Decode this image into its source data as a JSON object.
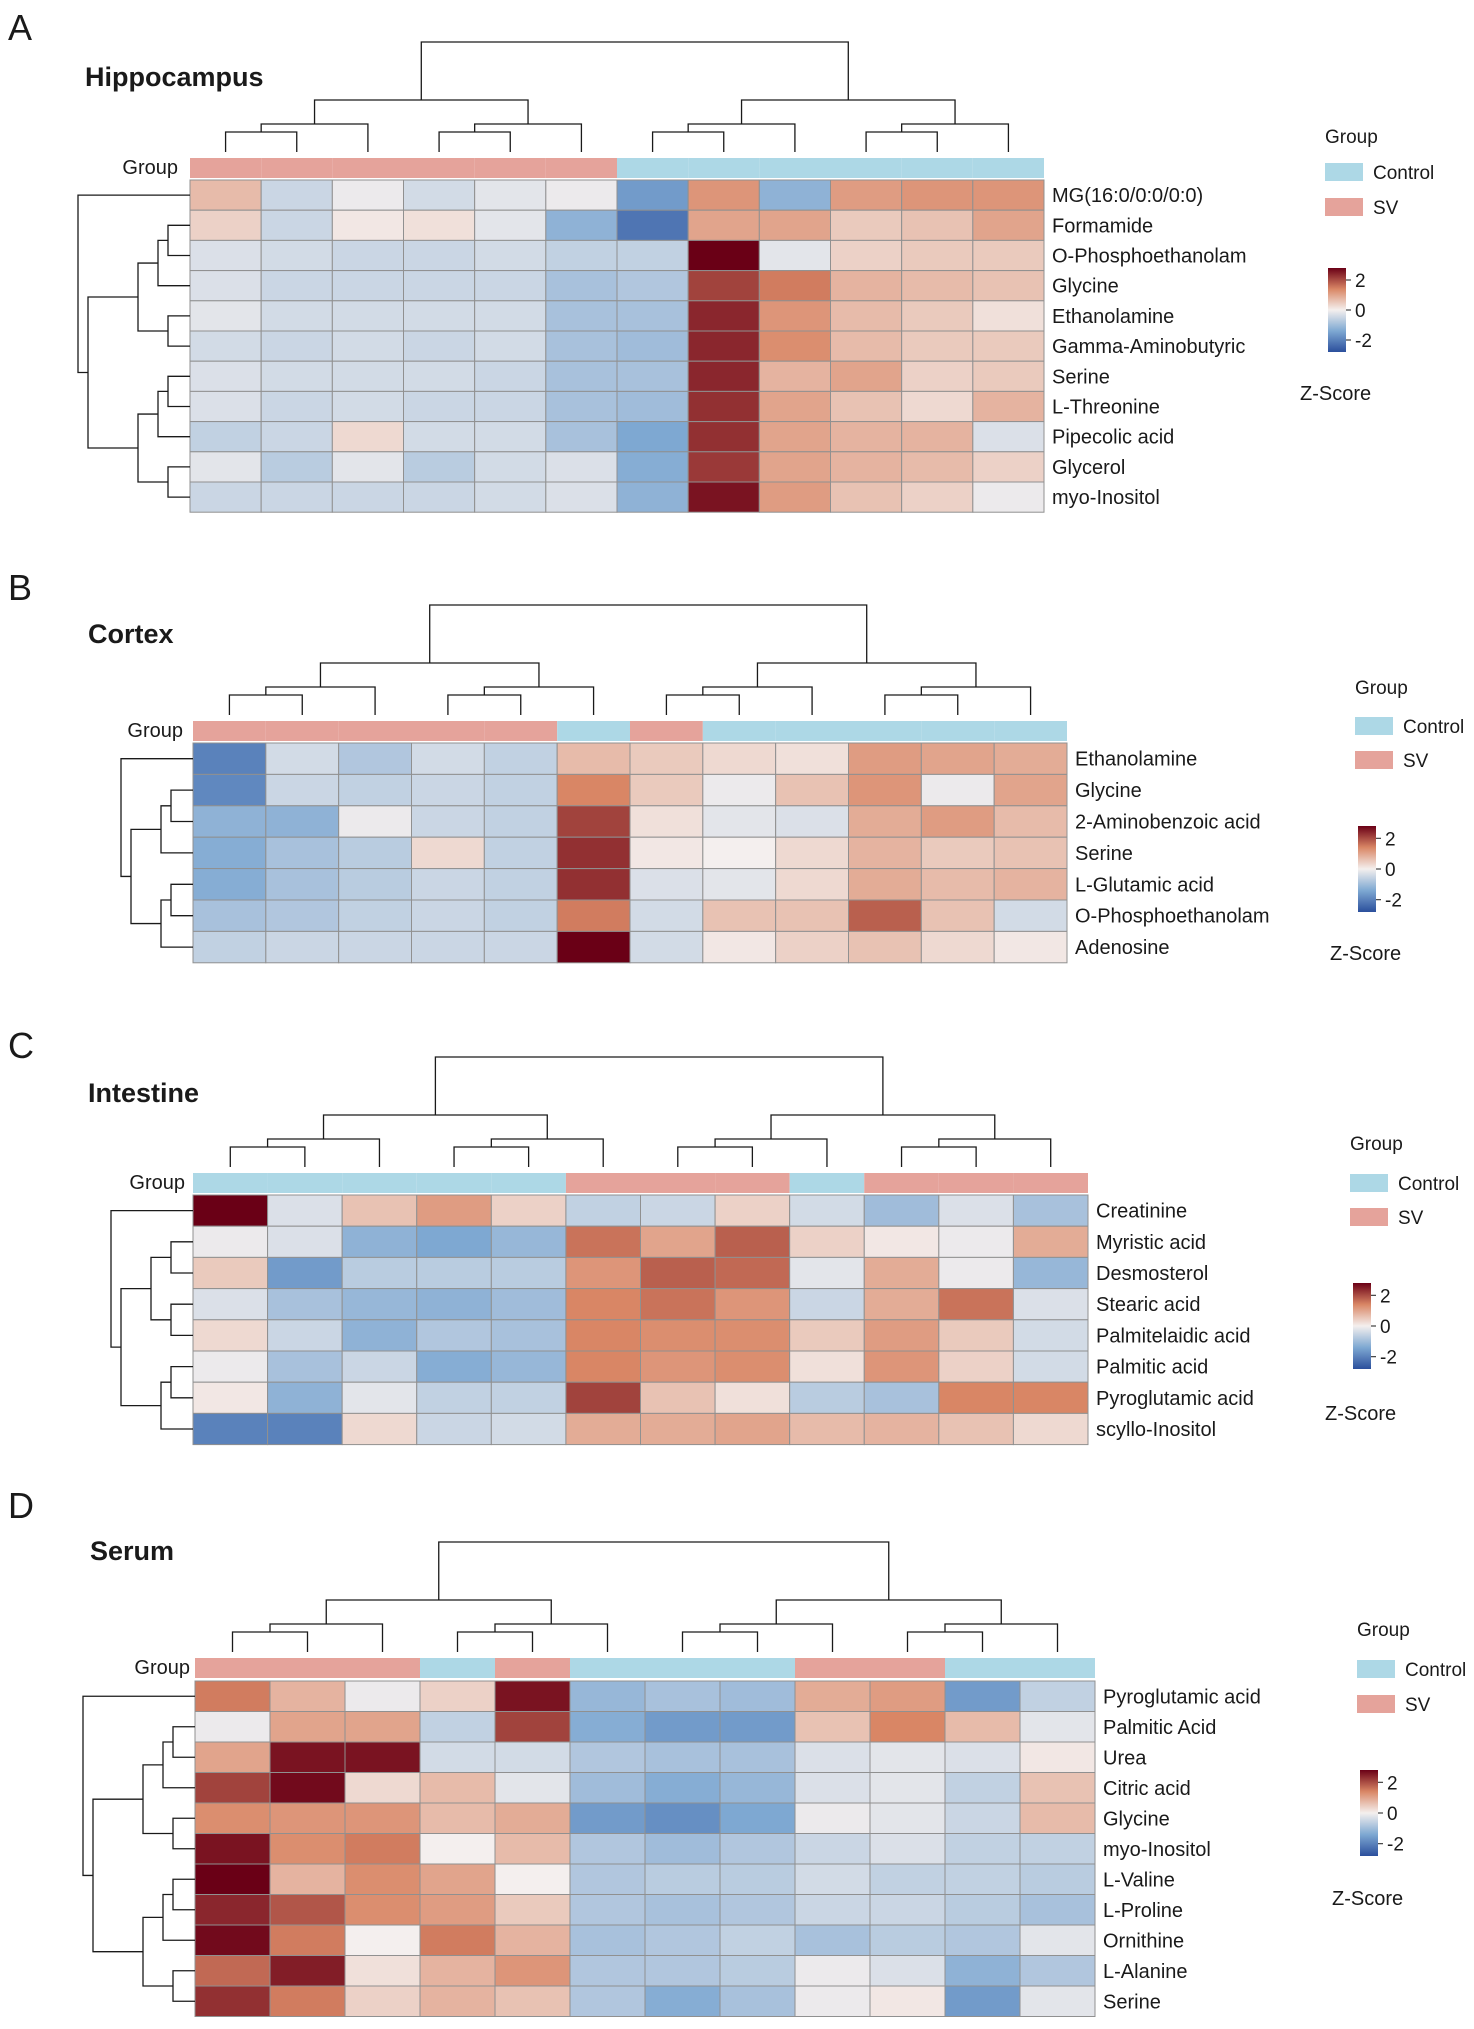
{
  "chart_data": [
    {
      "type": "heatmap",
      "panel": "A",
      "title": "Hippocampus",
      "group_label": "Group",
      "columns": [
        "SV",
        "SV",
        "SV",
        "SV",
        "SV",
        "SV",
        "Control",
        "Control",
        "Control",
        "Control",
        "Control",
        "Control"
      ],
      "rows": [
        "MG(16:0/0:0/0:0)",
        "Formamide",
        "O-Phosphoethanolam",
        "Glycine",
        "Ethanolamine",
        "Gamma-Aminobutyric",
        "Serine",
        "L-Threonine",
        "Pipecolic acid",
        "Glycerol",
        "myo-Inositol"
      ],
      "values": [
        [
          0.7,
          -0.5,
          -0.1,
          -0.4,
          -0.2,
          -0.1,
          -1.6,
          1.2,
          -1.2,
          1.1,
          1.2,
          1.2
        ],
        [
          0.4,
          -0.5,
          0.1,
          0.2,
          -0.2,
          -1.2,
          -2.2,
          1.0,
          1.0,
          0.5,
          0.6,
          1.0
        ],
        [
          -0.3,
          -0.4,
          -0.5,
          -0.5,
          -0.4,
          -0.6,
          -0.6,
          2.8,
          -0.2,
          0.4,
          0.5,
          0.5
        ],
        [
          -0.3,
          -0.5,
          -0.5,
          -0.5,
          -0.5,
          -0.9,
          -0.8,
          2.1,
          1.5,
          0.8,
          0.7,
          0.6
        ],
        [
          -0.2,
          -0.4,
          -0.4,
          -0.4,
          -0.4,
          -0.9,
          -0.9,
          2.4,
          1.2,
          0.7,
          0.5,
          0.2
        ],
        [
          -0.4,
          -0.5,
          -0.4,
          -0.5,
          -0.4,
          -0.9,
          -1.0,
          2.4,
          1.3,
          0.7,
          0.5,
          0.5
        ],
        [
          -0.3,
          -0.4,
          -0.4,
          -0.4,
          -0.5,
          -0.9,
          -0.9,
          2.4,
          0.8,
          1.0,
          0.4,
          0.5
        ],
        [
          -0.3,
          -0.5,
          -0.4,
          -0.5,
          -0.5,
          -0.9,
          -1.0,
          2.3,
          1.0,
          0.6,
          0.3,
          0.8
        ],
        [
          -0.6,
          -0.5,
          0.3,
          -0.4,
          -0.4,
          -0.9,
          -1.4,
          2.3,
          1.0,
          0.8,
          0.8,
          -0.3
        ],
        [
          -0.2,
          -0.7,
          -0.2,
          -0.7,
          -0.4,
          -0.3,
          -1.3,
          2.2,
          1.0,
          0.8,
          0.7,
          0.4
        ],
        [
          -0.5,
          -0.5,
          -0.5,
          -0.5,
          -0.4,
          -0.3,
          -1.2,
          2.6,
          1.1,
          0.6,
          0.4,
          -0.1
        ]
      ],
      "legend": {
        "title": "Group",
        "entries": [
          "Control",
          "SV"
        ]
      },
      "colorbar": {
        "title": "Z-Score",
        "ticks": [
          "2",
          "0",
          "-2"
        ],
        "range": [
          -2.8,
          2.8
        ]
      }
    },
    {
      "type": "heatmap",
      "panel": "B",
      "title": "Cortex",
      "group_label": "Group",
      "columns": [
        "SV",
        "SV",
        "SV",
        "SV",
        "SV",
        "Control",
        "SV",
        "Control",
        "Control",
        "Control",
        "Control",
        "Control"
      ],
      "rows": [
        "Ethanolamine",
        "Glycine",
        "2-Aminobenzoic acid",
        "Serine",
        "L-Glutamic acid",
        "O-Phosphoethanolam",
        "Adenosine"
      ],
      "values": [
        [
          -2.0,
          -0.4,
          -0.8,
          -0.4,
          -0.6,
          0.7,
          0.5,
          0.3,
          0.2,
          1.1,
          1.0,
          0.9
        ],
        [
          -1.9,
          -0.5,
          -0.6,
          -0.5,
          -0.6,
          1.4,
          0.5,
          -0.1,
          0.6,
          1.2,
          -0.1,
          1.0
        ],
        [
          -1.2,
          -1.2,
          -0.1,
          -0.5,
          -0.6,
          2.1,
          0.2,
          -0.2,
          -0.3,
          0.9,
          1.1,
          0.7
        ],
        [
          -1.3,
          -0.9,
          -0.7,
          0.3,
          -0.6,
          2.3,
          0.1,
          0.0,
          0.3,
          0.8,
          0.5,
          0.6
        ],
        [
          -1.3,
          -0.9,
          -0.7,
          -0.5,
          -0.6,
          2.3,
          -0.3,
          -0.2,
          0.3,
          0.9,
          0.7,
          0.8
        ],
        [
          -0.9,
          -0.8,
          -0.6,
          -0.5,
          -0.6,
          1.5,
          -0.4,
          0.6,
          0.6,
          1.8,
          0.6,
          -0.4
        ],
        [
          -0.6,
          -0.5,
          -0.5,
          -0.5,
          -0.5,
          2.8,
          -0.4,
          0.1,
          0.4,
          0.6,
          0.3,
          0.1
        ]
      ],
      "legend": {
        "title": "Group",
        "entries": [
          "Control",
          "SV"
        ]
      },
      "colorbar": {
        "title": "Z-Score",
        "ticks": [
          "2",
          "0",
          "-2"
        ],
        "range": [
          -2.8,
          2.8
        ]
      }
    },
    {
      "type": "heatmap",
      "panel": "C",
      "title": "Intestine",
      "group_label": "Group",
      "columns": [
        "Control",
        "Control",
        "Control",
        "Control",
        "Control",
        "SV",
        "SV",
        "SV",
        "Control",
        "SV",
        "SV",
        "SV"
      ],
      "rows": [
        "Creatinine",
        "Myristic acid",
        "Desmosterol",
        "Stearic acid",
        "Palmitelaidic acid",
        "Palmitic acid",
        "Pyroglutamic acid",
        "scyllo-Inositol"
      ],
      "values": [
        [
          2.8,
          -0.3,
          0.6,
          1.1,
          0.4,
          -0.6,
          -0.5,
          0.4,
          -0.4,
          -1.0,
          -0.3,
          -0.9
        ],
        [
          -0.1,
          -0.3,
          -1.2,
          -1.4,
          -1.1,
          1.6,
          1.0,
          1.8,
          0.4,
          0.1,
          -0.1,
          0.9
        ],
        [
          0.5,
          -1.6,
          -0.7,
          -0.7,
          -0.7,
          1.2,
          1.8,
          1.7,
          -0.2,
          0.9,
          -0.1,
          -1.1
        ],
        [
          -0.3,
          -0.9,
          -1.1,
          -1.2,
          -1.0,
          1.4,
          1.6,
          1.2,
          -0.5,
          0.9,
          1.6,
          -0.3
        ],
        [
          0.3,
          -0.5,
          -1.2,
          -0.8,
          -0.9,
          1.4,
          1.3,
          1.3,
          0.5,
          1.1,
          0.5,
          -0.4
        ],
        [
          -0.1,
          -0.9,
          -0.5,
          -1.3,
          -1.1,
          1.4,
          1.2,
          1.3,
          0.2,
          1.2,
          0.4,
          -0.4
        ],
        [
          0.1,
          -1.2,
          -0.2,
          -0.6,
          -0.6,
          2.1,
          0.6,
          0.2,
          -0.7,
          -0.9,
          1.4,
          1.4
        ],
        [
          -2.0,
          -2.0,
          0.3,
          -0.5,
          -0.4,
          0.9,
          0.9,
          1.0,
          0.7,
          0.8,
          0.6,
          0.3
        ]
      ],
      "legend": {
        "title": "Group",
        "entries": [
          "Control",
          "SV"
        ]
      },
      "colorbar": {
        "title": "Z-Score",
        "ticks": [
          "2",
          "0",
          "-2"
        ],
        "range": [
          -2.8,
          2.8
        ]
      }
    },
    {
      "type": "heatmap",
      "panel": "D",
      "title": "Serum",
      "group_label": "Group",
      "columns": [
        "SV",
        "SV",
        "SV",
        "Control",
        "SV",
        "Control",
        "Control",
        "Control",
        "SV",
        "SV",
        "Control",
        "Control"
      ],
      "rows": [
        "Pyroglutamic acid",
        "Palmitic Acid",
        "Urea",
        "Citric acid",
        "Glycine",
        "myo-Inositol",
        "L-Valine",
        "L-Proline",
        "Ornithine",
        "L-Alanine",
        "Serine"
      ],
      "values": [
        [
          1.5,
          0.8,
          -0.1,
          0.4,
          2.6,
          -1.1,
          -0.9,
          -1.0,
          0.9,
          1.1,
          -1.6,
          -0.6
        ],
        [
          -0.1,
          1.0,
          1.0,
          -0.6,
          2.1,
          -1.3,
          -1.6,
          -1.6,
          0.6,
          1.4,
          0.7,
          -0.2
        ],
        [
          1.0,
          2.6,
          2.6,
          -0.4,
          -0.4,
          -0.8,
          -0.9,
          -0.9,
          -0.3,
          -0.2,
          -0.3,
          0.1
        ],
        [
          2.1,
          2.7,
          0.3,
          0.7,
          -0.2,
          -1.0,
          -1.3,
          -1.1,
          -0.3,
          -0.2,
          -0.6,
          0.6
        ],
        [
          1.3,
          1.2,
          1.2,
          0.7,
          0.9,
          -1.6,
          -1.8,
          -1.4,
          -0.1,
          -0.2,
          -0.5,
          0.7
        ],
        [
          2.6,
          1.3,
          1.5,
          0.0,
          0.7,
          -0.8,
          -1.0,
          -0.8,
          -0.5,
          -0.3,
          -0.6,
          -0.6
        ],
        [
          2.9,
          0.8,
          1.3,
          1.0,
          0.0,
          -0.8,
          -0.7,
          -0.7,
          -0.4,
          -0.6,
          -0.6,
          -0.7
        ],
        [
          2.4,
          1.9,
          1.3,
          1.1,
          0.5,
          -0.8,
          -0.9,
          -0.8,
          -0.5,
          -0.5,
          -0.7,
          -0.9
        ],
        [
          2.7,
          1.5,
          0.0,
          1.5,
          0.8,
          -0.9,
          -0.8,
          -0.6,
          -0.9,
          -0.7,
          -0.8,
          -0.2
        ],
        [
          1.7,
          2.5,
          0.2,
          0.8,
          1.2,
          -0.8,
          -0.8,
          -0.7,
          -0.1,
          -0.3,
          -1.2,
          -0.8
        ],
        [
          2.3,
          1.5,
          0.4,
          0.8,
          0.6,
          -0.8,
          -1.3,
          -0.9,
          -0.1,
          0.1,
          -1.6,
          -0.2
        ]
      ],
      "legend": {
        "title": "Group",
        "entries": [
          "Control",
          "SV"
        ]
      },
      "colorbar": {
        "title": "Z-Score",
        "ticks": [
          "2",
          "0",
          "-2"
        ],
        "range": [
          -2.8,
          2.8
        ]
      }
    }
  ],
  "panel_letters": [
    "A",
    "B",
    "C",
    "D"
  ],
  "colors": {
    "control": "#add8e6",
    "sv": "#e5a39b",
    "grid": "#909090",
    "dendro": "#1a1a1a",
    "text": "#1a1a1a",
    "scale": [
      "#2b4f9c",
      "#7ea8d2",
      "#f4efee",
      "#d98665",
      "#6a0016"
    ]
  }
}
